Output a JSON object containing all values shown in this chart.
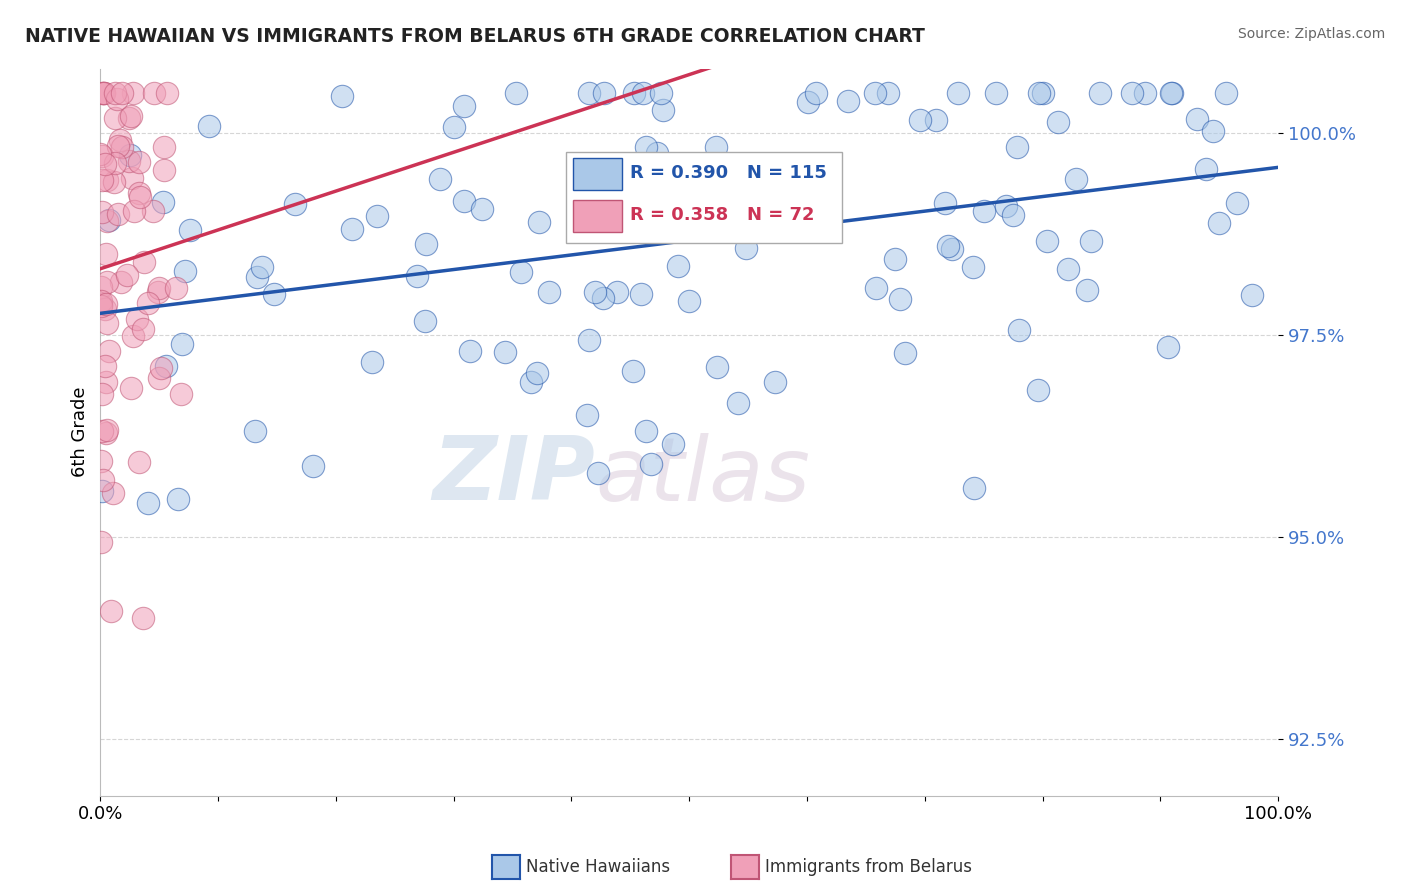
{
  "title": "NATIVE HAWAIIAN VS IMMIGRANTS FROM BELARUS 6TH GRADE CORRELATION CHART",
  "source": "Source: ZipAtlas.com",
  "ylabel": "6th Grade",
  "xlim": [
    0.0,
    1.0
  ],
  "ylim": [
    0.918,
    1.008
  ],
  "yticks": [
    0.925,
    0.95,
    0.975,
    1.0
  ],
  "ytick_labels": [
    "92.5%",
    "95.0%",
    "97.5%",
    "100.0%"
  ],
  "blue_color": "#aac8e8",
  "pink_color": "#f0a0b8",
  "blue_line_color": "#2255aa",
  "pink_line_color": "#cc3355",
  "R_blue": 0.39,
  "N_blue": 115,
  "R_pink": 0.358,
  "N_pink": 72,
  "legend_blue": "Native Hawaiians",
  "legend_pink": "Immigrants from Belarus",
  "watermark_zip": "ZIP",
  "watermark_atlas": "atlas",
  "background_color": "#ffffff",
  "grid_color": "#cccccc"
}
